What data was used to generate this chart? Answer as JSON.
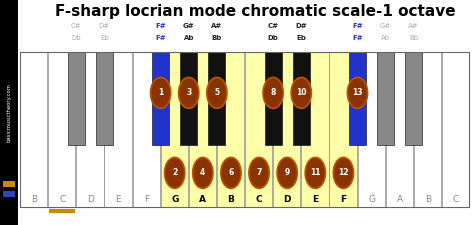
{
  "title": "F-sharp locrian mode chromatic scale-1 octave",
  "bg_color": "#ffffff",
  "white_key_names": [
    "B",
    "C",
    "D",
    "E",
    "F",
    "G",
    "A",
    "B",
    "C",
    "D",
    "E",
    "F",
    "G",
    "A",
    "B",
    "C"
  ],
  "white_key_color": "#ffffff",
  "yellow_key_color": "#ffffaa",
  "gray_key_color": "#888888",
  "blue_black_key_color": "#2233cc",
  "dark_black_key_color": "#111111",
  "note_circle_color": "#8B3300",
  "note_circle_edge": "#bb5500",
  "note_text_color": "#ffffff",
  "orange_color": "#cc8800",
  "sidebar_blue": "#3344bb",
  "highlighted_white": [
    5,
    6,
    7,
    8,
    9,
    10,
    11
  ],
  "black_keys": [
    {
      "li": 1,
      "ri": 2,
      "blue": false,
      "gray": true
    },
    {
      "li": 2,
      "ri": 3,
      "blue": false,
      "gray": true
    },
    {
      "li": 4,
      "ri": 5,
      "blue": true,
      "gray": false
    },
    {
      "li": 5,
      "ri": 6,
      "blue": false,
      "gray": false
    },
    {
      "li": 6,
      "ri": 7,
      "blue": false,
      "gray": false
    },
    {
      "li": 8,
      "ri": 9,
      "blue": false,
      "gray": false
    },
    {
      "li": 9,
      "ri": 10,
      "blue": false,
      "gray": false
    },
    {
      "li": 11,
      "ri": 12,
      "blue": true,
      "gray": false
    },
    {
      "li": 12,
      "ri": 13,
      "blue": false,
      "gray": true
    },
    {
      "li": 13,
      "ri": 14,
      "blue": false,
      "gray": true
    }
  ],
  "white_circles": [
    {
      "idx": 5,
      "num": "2"
    },
    {
      "idx": 6,
      "num": "4"
    },
    {
      "idx": 7,
      "num": "6"
    },
    {
      "idx": 8,
      "num": "7"
    },
    {
      "idx": 9,
      "num": "9"
    },
    {
      "idx": 10,
      "num": "11"
    },
    {
      "idx": 11,
      "num": "12"
    }
  ],
  "black_circles": [
    {
      "li": 4,
      "ri": 5,
      "num": "1"
    },
    {
      "li": 5,
      "ri": 6,
      "num": "3"
    },
    {
      "li": 6,
      "ri": 7,
      "num": "5"
    },
    {
      "li": 8,
      "ri": 9,
      "num": "8"
    },
    {
      "li": 9,
      "ri": 10,
      "num": "10"
    },
    {
      "li": 11,
      "ri": 12,
      "num": "13"
    }
  ],
  "sharp_labels": [
    {
      "li": 1,
      "top": "C#",
      "bot": "Db",
      "active": false,
      "blue": false
    },
    {
      "li": 2,
      "top": "D#",
      "bot": "Eb",
      "active": false,
      "blue": false
    },
    {
      "li": 4,
      "top": "F#",
      "bot": "F#",
      "active": true,
      "blue": true
    },
    {
      "li": 5,
      "top": "G#",
      "bot": "Ab",
      "active": true,
      "blue": false
    },
    {
      "li": 6,
      "top": "A#",
      "bot": "Bb",
      "active": true,
      "blue": false
    },
    {
      "li": 8,
      "top": "C#",
      "bot": "Db",
      "active": true,
      "blue": false
    },
    {
      "li": 9,
      "top": "D#",
      "bot": "Eb",
      "active": true,
      "blue": false
    },
    {
      "li": 11,
      "top": "F#",
      "bot": "F#",
      "active": true,
      "blue": true
    },
    {
      "li": 12,
      "top": "G#",
      "bot": "Ab",
      "active": false,
      "blue": false
    },
    {
      "li": 13,
      "top": "A#",
      "bot": "Bb",
      "active": false,
      "blue": false
    }
  ]
}
